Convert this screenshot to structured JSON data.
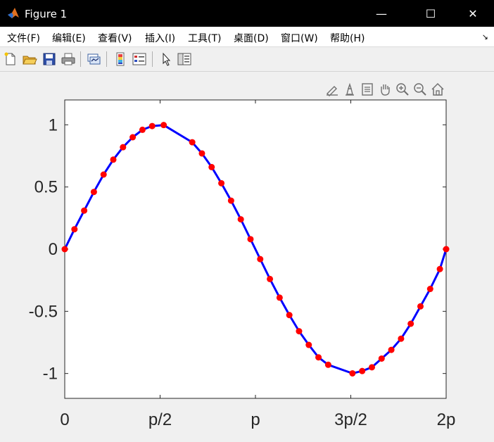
{
  "window": {
    "title": "Figure 1",
    "minimize": "—",
    "maximize": "☐",
    "close": "✕"
  },
  "menu": {
    "items": [
      "文件(F)",
      "编辑(E)",
      "查看(V)",
      "插入(I)",
      "工具(T)",
      "桌面(D)",
      "窗口(W)",
      "帮助(H)"
    ],
    "overflow": "↘"
  },
  "toolbar": {
    "icons": [
      "new-figure-icon",
      "open-file-icon",
      "save-icon",
      "print-icon",
      "link-plot-icon",
      "insert-colorbar-icon",
      "insert-legend-icon",
      "edit-plot-icon",
      "property-inspector-icon"
    ]
  },
  "axes_toolbar": {
    "icons": [
      "brush-data-icon",
      "data-tips-icon",
      "restore-view-icon",
      "pan-icon",
      "zoom-in-icon",
      "zoom-out-icon",
      "home-icon"
    ]
  },
  "chart_data": {
    "type": "line",
    "title": "",
    "xlabel": "",
    "ylabel": "",
    "xlim": [
      0,
      6.2832
    ],
    "ylim": [
      -1.2,
      1.2
    ],
    "xticks": [
      0,
      1.5708,
      3.1416,
      4.7124,
      6.2832
    ],
    "xticklabels": [
      "0",
      "p/2",
      "p",
      "3p/2",
      "2p"
    ],
    "yticks": [
      -1,
      -0.5,
      0,
      0.5,
      1
    ],
    "yticklabels": [
      "-1",
      "-0.5",
      "0",
      "0.5",
      "1"
    ],
    "grid": false,
    "line_color": "#0000ff",
    "marker_color": "#ff0000",
    "series": [
      {
        "x": [
          0,
          0.16,
          0.32,
          0.48,
          0.64,
          0.8,
          0.96,
          1.12,
          1.28,
          1.44,
          1.63,
          2.1,
          2.26,
          2.42,
          2.58,
          2.74,
          2.9,
          3.06,
          3.22,
          3.38,
          3.54,
          3.7,
          3.86,
          4.02,
          4.18,
          4.34,
          4.74,
          4.9,
          5.06,
          5.22,
          5.38,
          5.54,
          5.7,
          5.86,
          6.02,
          6.18,
          6.2832
        ],
        "y": [
          0,
          0.16,
          0.31,
          0.46,
          0.6,
          0.72,
          0.82,
          0.9,
          0.96,
          0.99,
          0.998,
          0.86,
          0.77,
          0.66,
          0.53,
          0.39,
          0.24,
          0.08,
          -0.08,
          -0.24,
          -0.39,
          -0.53,
          -0.66,
          -0.77,
          -0.87,
          -0.93,
          -0.999,
          -0.98,
          -0.95,
          -0.88,
          -0.81,
          -0.72,
          -0.6,
          -0.46,
          -0.32,
          -0.16,
          0
        ]
      }
    ]
  }
}
